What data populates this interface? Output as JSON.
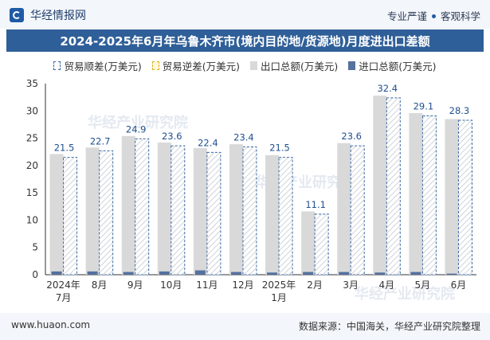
{
  "header": {
    "brand": "华经情报网",
    "tag1": "专业严谨",
    "tag2": "客观科学"
  },
  "watermark": "华经产业研究院",
  "footer": {
    "website": "www.huaon.com",
    "source": "数据来源：中国海关，华经产业研究院整理"
  },
  "colors": {
    "export": "#d9d9d9",
    "import": "#55719e",
    "surplus_border": "#3c6aa6",
    "title_bg": "#2f5f98"
  },
  "chart_data": {
    "type": "bar",
    "title": "2024-2025年6月年乌鲁木齐市(境内目的地/货源地)月度进出口差额",
    "legend": [
      "贸易顺差(万美元)",
      "贸易逆差(万美元)",
      "出口总额(万美元)",
      "进口总额(万美元)"
    ],
    "categories": [
      [
        "2024年",
        "7月"
      ],
      [
        "8月"
      ],
      [
        "9月"
      ],
      [
        "10月"
      ],
      [
        "11月"
      ],
      [
        "12月"
      ],
      [
        "2025年",
        "1月"
      ],
      [
        "2月"
      ],
      [
        "3月"
      ],
      [
        "4月"
      ],
      [
        "5月"
      ],
      [
        "6月"
      ]
    ],
    "series": [
      {
        "name": "出口总额(万美元)",
        "values": [
          22.1,
          23.3,
          25.4,
          24.2,
          23.2,
          23.9,
          21.9,
          11.6,
          24.1,
          32.8,
          29.6,
          28.5
        ]
      },
      {
        "name": "进口总额(万美元)",
        "values": [
          0.6,
          0.6,
          0.5,
          0.6,
          0.8,
          0.5,
          0.4,
          0.5,
          0.5,
          0.4,
          0.5,
          0.2
        ]
      },
      {
        "name": "贸易顺差(万美元)",
        "values": [
          21.5,
          22.7,
          24.9,
          23.6,
          22.4,
          23.4,
          21.5,
          11.1,
          23.6,
          32.4,
          29.1,
          28.3
        ]
      }
    ],
    "labels": [
      "21.5",
      "22.7",
      "24.9",
      "23.6",
      "22.4",
      "23.4",
      "21.5",
      "11.1",
      "23.6",
      "32.4",
      "29.1",
      "28.3"
    ],
    "ylim": [
      0,
      35
    ],
    "yticks": [
      0,
      5,
      10,
      15,
      20,
      25,
      30,
      35
    ]
  }
}
